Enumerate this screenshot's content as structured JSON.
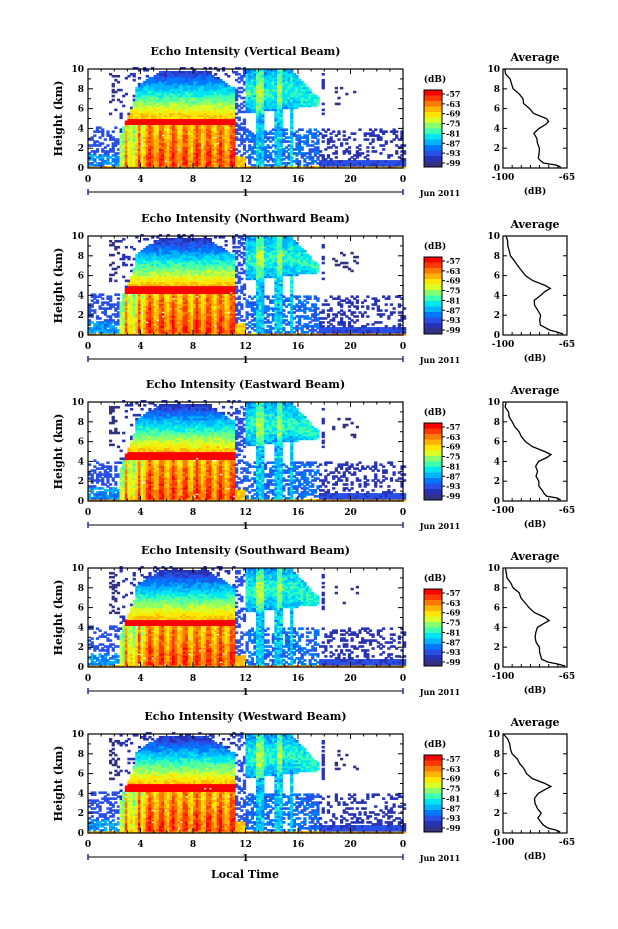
{
  "figure": {
    "xlabel": "Local Time",
    "date_label": "Jun 2011",
    "day_label": "1",
    "colorbar_unit": "(dB)",
    "colorbar_ticks": [
      "-57",
      "-63",
      "-69",
      "-75",
      "-81",
      "-87",
      "-93",
      "-99"
    ],
    "colorbar_colors": [
      "#ff0000",
      "#ff3a00",
      "#ff7a00",
      "#ffb400",
      "#ffe600",
      "#d8ff28",
      "#88ff6e",
      "#3cffb4",
      "#00e6f0",
      "#00b4ff",
      "#0078ff",
      "#2850e6",
      "#2832b4",
      "#323282"
    ],
    "profile_title": "Average",
    "profile_xlabel": "(dB)",
    "profile_xticks": [
      "-100",
      "-65"
    ],
    "ylabel": "Height (km)",
    "yticks": [
      "0",
      "2",
      "4",
      "6",
      "8",
      "10"
    ],
    "xticks": [
      "0",
      "4",
      "8",
      "12",
      "16",
      "20",
      "0"
    ]
  },
  "chart_data": [
    {
      "type": "heatmap",
      "title": "Echo Intensity (Vertical Beam)",
      "ylabel": "Height (km)",
      "ylim": [
        0,
        10
      ],
      "xlim": [
        0,
        24
      ],
      "zlim": [
        -99,
        -57
      ],
      "z_unit": "dB",
      "features": {
        "precip_start_h": 2.5,
        "precip_end_h": 11.2,
        "melting_layer_km": 4.7,
        "max_echo_top_km": 10.0
      },
      "average_profile": {
        "xlim": [
          -100,
          -65
        ],
        "height": [
          0.1,
          0.3,
          0.5,
          0.8,
          1.0,
          1.5,
          2.0,
          2.5,
          3.0,
          3.5,
          4.0,
          4.4,
          4.7,
          5.0,
          5.5,
          6.0,
          6.5,
          7.0,
          7.5,
          8.0,
          8.5,
          9.0,
          9.5,
          10.0
        ],
        "value": [
          -68,
          -72,
          -77,
          -79,
          -80,
          -80,
          -80,
          -81,
          -82,
          -83,
          -81,
          -77,
          -75,
          -77,
          -83,
          -86,
          -88,
          -90,
          -92,
          -94,
          -96,
          -97,
          -98,
          -99
        ]
      }
    },
    {
      "type": "heatmap",
      "title": "Echo Intensity (Northward Beam)",
      "ylabel": "Height (km)",
      "ylim": [
        0,
        10
      ],
      "xlim": [
        0,
        24
      ],
      "zlim": [
        -99,
        -57
      ],
      "z_unit": "dB",
      "features": {
        "precip_start_h": 2.5,
        "precip_end_h": 11.2,
        "melting_layer_km": 4.6,
        "max_echo_top_km": 10.0
      },
      "average_profile": {
        "xlim": [
          -100,
          -65
        ],
        "height": [
          0.1,
          0.3,
          0.5,
          0.8,
          1.0,
          1.5,
          2.0,
          2.5,
          3.0,
          3.5,
          4.0,
          4.4,
          4.7,
          5.0,
          5.5,
          6.0,
          6.5,
          7.0,
          7.5,
          8.0,
          8.5,
          9.0,
          9.5,
          10.0
        ],
        "value": [
          -67,
          -70,
          -75,
          -78,
          -79,
          -79,
          -80,
          -81,
          -82,
          -83,
          -80,
          -76,
          -74,
          -77,
          -84,
          -87,
          -89,
          -91,
          -93,
          -95,
          -96,
          -97,
          -98,
          -99
        ]
      }
    },
    {
      "type": "heatmap",
      "title": "Echo Intensity (Eastward Beam)",
      "ylabel": "Height (km)",
      "ylim": [
        0,
        10
      ],
      "xlim": [
        0,
        24
      ],
      "zlim": [
        -99,
        -57
      ],
      "z_unit": "dB",
      "features": {
        "precip_start_h": 2.5,
        "precip_end_h": 11.2,
        "melting_layer_km": 4.6,
        "max_echo_top_km": 10.0
      },
      "average_profile": {
        "xlim": [
          -100,
          -65
        ],
        "height": [
          0.1,
          0.3,
          0.5,
          0.8,
          1.0,
          1.5,
          2.0,
          2.5,
          3.0,
          3.5,
          4.0,
          4.4,
          4.7,
          5.0,
          5.5,
          6.0,
          6.5,
          7.0,
          7.5,
          8.0,
          8.5,
          9.0,
          9.5,
          10.0
        ],
        "value": [
          -68,
          -71,
          -76,
          -78,
          -79,
          -80,
          -80,
          -81,
          -82,
          -83,
          -80,
          -76,
          -73,
          -77,
          -84,
          -87,
          -89,
          -91,
          -93,
          -95,
          -96,
          -97,
          -98,
          -99
        ]
      }
    },
    {
      "type": "heatmap",
      "title": "Echo Intensity (Southward Beam)",
      "ylabel": "Height (km)",
      "ylim": [
        0,
        10
      ],
      "xlim": [
        0,
        24
      ],
      "zlim": [
        -99,
        -57
      ],
      "z_unit": "dB",
      "features": {
        "precip_start_h": 2.5,
        "precip_end_h": 11.2,
        "melting_layer_km": 4.5,
        "max_echo_top_km": 10.0
      },
      "average_profile": {
        "xlim": [
          -100,
          -65
        ],
        "height": [
          0.1,
          0.3,
          0.5,
          0.8,
          1.0,
          1.5,
          2.0,
          2.5,
          3.0,
          3.5,
          4.0,
          4.4,
          4.7,
          5.0,
          5.5,
          6.0,
          6.5,
          7.0,
          7.5,
          8.0,
          8.5,
          9.0,
          9.5,
          10.0
        ],
        "value": [
          -67,
          -70,
          -75,
          -78,
          -79,
          -80,
          -80,
          -81,
          -82,
          -83,
          -81,
          -77,
          -74,
          -77,
          -83,
          -86,
          -88,
          -90,
          -92,
          -94,
          -96,
          -97,
          -98,
          -99
        ]
      }
    },
    {
      "type": "heatmap",
      "title": "Echo Intensity (Westward Beam)",
      "ylabel": "Height (km)",
      "ylim": [
        0,
        10
      ],
      "xlim": [
        0,
        24
      ],
      "zlim": [
        -99,
        -57
      ],
      "z_unit": "dB",
      "features": {
        "precip_start_h": 2.5,
        "precip_end_h": 11.2,
        "melting_layer_km": 4.6,
        "max_echo_top_km": 10.0
      },
      "average_profile": {
        "xlim": [
          -100,
          -65
        ],
        "height": [
          0.1,
          0.3,
          0.5,
          0.8,
          1.0,
          1.5,
          2.0,
          2.5,
          3.0,
          3.5,
          4.0,
          4.4,
          4.7,
          5.0,
          5.5,
          6.0,
          6.5,
          7.0,
          7.5,
          8.0,
          8.5,
          9.0,
          9.5,
          10.0
        ],
        "value": [
          -68,
          -71,
          -76,
          -78,
          -79,
          -80,
          -80,
          -81,
          -82,
          -83,
          -80,
          -76,
          -74,
          -77,
          -84,
          -87,
          -89,
          -91,
          -93,
          -95,
          -96,
          -97,
          -98,
          -99
        ]
      }
    }
  ]
}
